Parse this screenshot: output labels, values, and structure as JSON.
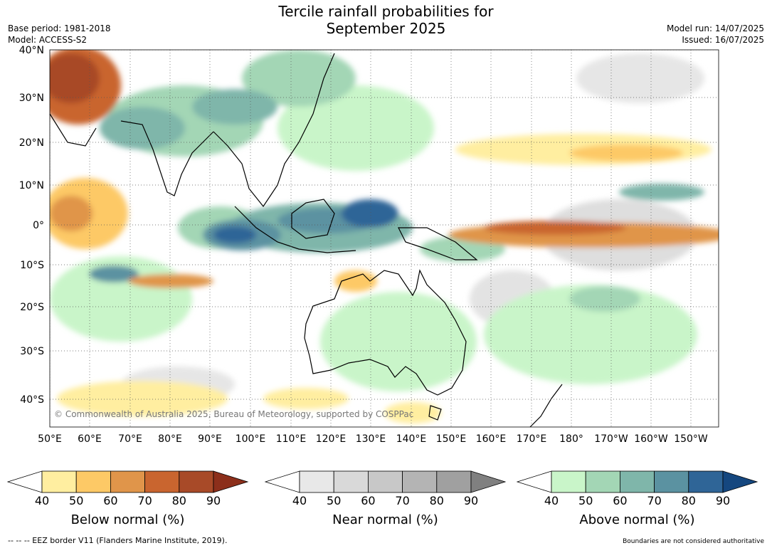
{
  "title_line1": "Tercile rainfall probabilities for",
  "title_line2": "September 2025",
  "meta_left": [
    "Base period: 1981-2018",
    "Model: ACCESS-S2"
  ],
  "meta_right": [
    "Model run: 14/07/2025",
    "Issued: 16/07/2025"
  ],
  "lat_labels": [
    "40°N",
    "30°N",
    "20°N",
    "10°N",
    "0°",
    "10°S",
    "20°S",
    "30°S",
    "40°S"
  ],
  "lon_labels": [
    "50°E",
    "60°E",
    "70°E",
    "80°E",
    "90°E",
    "100°E",
    "110°E",
    "120°E",
    "130°E",
    "140°E",
    "150°E",
    "160°E",
    "170°E",
    "180°",
    "170°W",
    "160°W",
    "150°W"
  ],
  "copyright": "© Commonwealth of Australia 2025, Bureau of Meteorology, supported by COSPPac",
  "colorbars": [
    {
      "label": "Below normal (%)",
      "ticks": [
        "40",
        "50",
        "60",
        "70",
        "80",
        "90"
      ],
      "colors": [
        "#ffffff",
        "#ffeea0",
        "#fdc966",
        "#e0954a",
        "#c9652f",
        "#a84a28",
        "#8c2f1b"
      ]
    },
    {
      "label": "Near normal (%)",
      "ticks": [
        "40",
        "50",
        "60",
        "70",
        "80",
        "90"
      ],
      "colors": [
        "#ffffff",
        "#e8e8e8",
        "#d9d9d9",
        "#c8c8c8",
        "#b4b4b4",
        "#a0a0a0",
        "#808080"
      ]
    },
    {
      "label": "Above normal (%)",
      "ticks": [
        "40",
        "50",
        "60",
        "70",
        "80",
        "90"
      ],
      "colors": [
        "#ffffff",
        "#c9f5c9",
        "#a3d6b5",
        "#7fb6aa",
        "#5b92a1",
        "#2f6597",
        "#15477f"
      ]
    }
  ],
  "footer_left": "-- -- -- EEZ border V11 (Flanders Marine Institute, 2019).",
  "footer_right": "Boundaries are not considered authoritative"
}
